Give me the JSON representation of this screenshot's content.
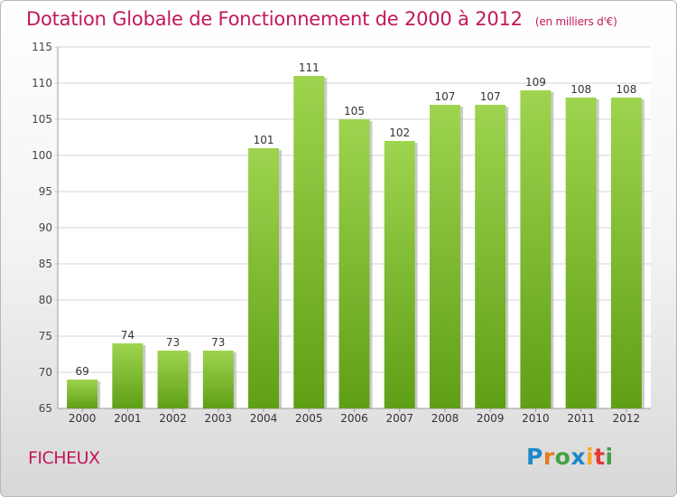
{
  "title": "Dotation Globale de Fonctionnement de 2000 à 2012",
  "subtitle": "(en milliers d'€)",
  "commune": "FICHEUX",
  "logo_text": "Proxiti",
  "colors": {
    "title": "#c2185b",
    "bar_top": "#9ed44f",
    "bar_bottom": "#5f9f16",
    "bar_shadow": "#b5b5b5",
    "grid": "#d6d6d6"
  },
  "chart_data": {
    "type": "bar",
    "categories": [
      "2000",
      "2001",
      "2002",
      "2003",
      "2004",
      "2005",
      "2006",
      "2007",
      "2008",
      "2009",
      "2010",
      "2011",
      "2012"
    ],
    "values": [
      69,
      74,
      73,
      73,
      101,
      111,
      105,
      102,
      107,
      107,
      109,
      108,
      108
    ],
    "ylim": [
      65,
      115
    ],
    "yticks": [
      65,
      70,
      75,
      80,
      85,
      90,
      95,
      100,
      105,
      110,
      115
    ],
    "grid": true
  }
}
